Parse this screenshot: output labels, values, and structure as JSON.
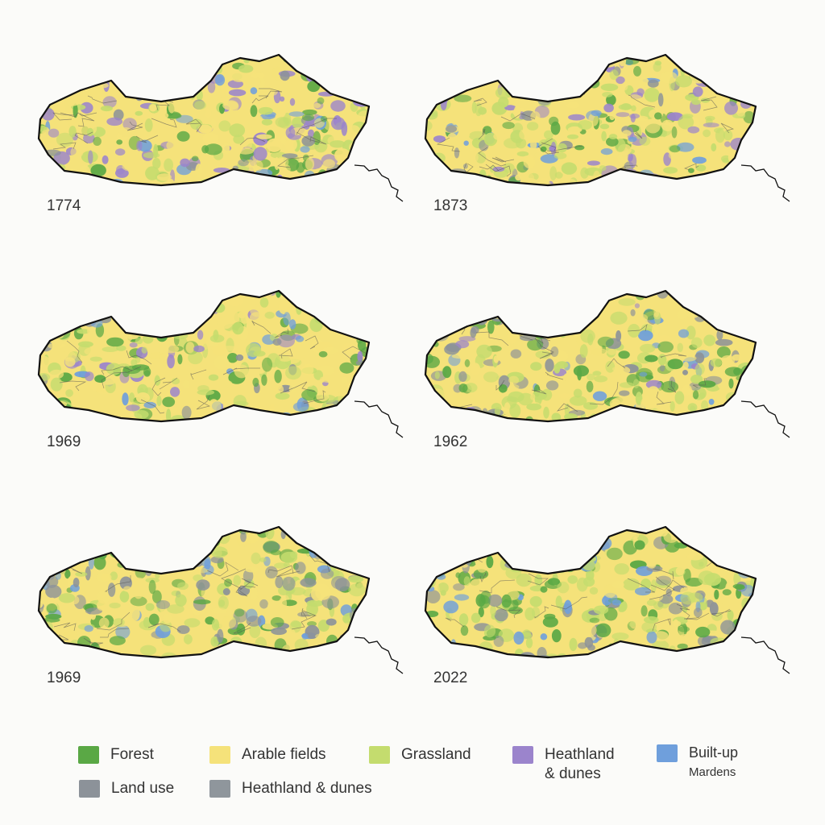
{
  "panels": [
    {
      "label": "1774"
    },
    {
      "label": "1873"
    },
    {
      "label": "1969"
    },
    {
      "label": "1962"
    },
    {
      "label": "1969"
    },
    {
      "label": "2022"
    }
  ],
  "legend": [
    {
      "label_lines": [
        "Forest"
      ],
      "color": "#5aa845"
    },
    {
      "label_lines": [
        "Arable fields"
      ],
      "color": "#f5e27a"
    },
    {
      "label_lines": [
        "Grassland"
      ],
      "color": "#c4dc6e"
    },
    {
      "label_lines": [
        "Heathland",
        "& dunes"
      ],
      "color": "#9b84cc"
    },
    {
      "label_lines": [
        "Built-up",
        "Mardens"
      ],
      "color": "#6f9fdc"
    },
    {
      "label_lines": [
        "Land use"
      ],
      "color": "#8c9299"
    },
    {
      "label_lines": [
        "Heathland & dunes"
      ],
      "color": "#8f969c"
    }
  ]
}
